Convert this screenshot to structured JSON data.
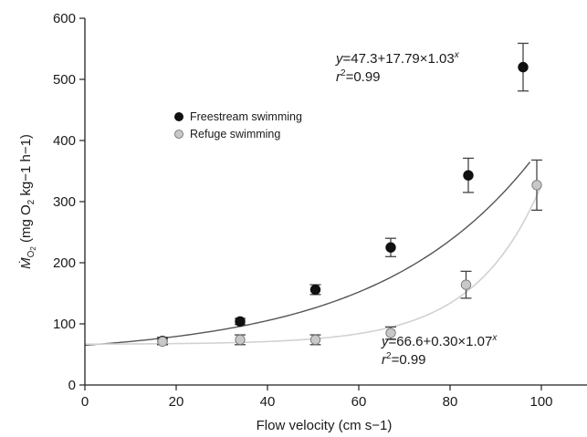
{
  "chart_data": {
    "type": "scatter",
    "xlabel": "Flow velocity (cm s−1)",
    "ylabel": {
      "dot_m": "Ṁ",
      "m_sub": "O",
      "m_sub2": "2",
      "mid": " (mg O",
      "o_sub": "2",
      "unit": " kg−1 h−1)"
    },
    "xlim": [
      0,
      110
    ],
    "ylim": [
      0,
      600
    ],
    "xticks": [
      "0",
      "20",
      "40",
      "60",
      "80",
      "100"
    ],
    "yticks": [
      "0",
      "100",
      "200",
      "300",
      "400",
      "500",
      "600"
    ],
    "grid": false,
    "legend_position": "upper-left",
    "series": [
      {
        "name": "Freestream swimming",
        "marker_color": "#111111",
        "curve_color": "#555555",
        "points": [
          {
            "x": 17,
            "y": 72,
            "err": 6
          },
          {
            "x": 34,
            "y": 104,
            "err": 5
          },
          {
            "x": 50.5,
            "y": 156,
            "err": 8
          },
          {
            "x": 67,
            "y": 225,
            "err": 15
          },
          {
            "x": 84,
            "y": 343,
            "err": 28
          },
          {
            "x": 96,
            "y": 520,
            "err": 39
          }
        ],
        "fit": {
          "a": 47.3,
          "b": 17.79,
          "c": 1.03
        }
      },
      {
        "name": "Refuge swimming",
        "marker_color": "#c8c8c8",
        "curve_color": "#d2d2d2",
        "points": [
          {
            "x": 17,
            "y": 71,
            "err": 5
          },
          {
            "x": 34,
            "y": 74,
            "err": 8
          },
          {
            "x": 50.5,
            "y": 74,
            "err": 8
          },
          {
            "x": 67,
            "y": 85,
            "err": 10
          },
          {
            "x": 83.5,
            "y": 164,
            "err": 22
          },
          {
            "x": 99,
            "y": 327,
            "err": 41
          }
        ],
        "fit": {
          "a": 66.6,
          "b": 0.3,
          "c": 1.07
        }
      }
    ],
    "annotations": [
      {
        "key": "fs_eq",
        "y_label": "y",
        "eq": "=47.3+17.79×1.03",
        "exp": "x",
        "r_label": "r",
        "r_exp": "2",
        "r_val": "=0.99"
      },
      {
        "key": "rf_eq",
        "y_label": "y",
        "eq": "=66.6+0.30×1.07",
        "exp": "x",
        "r_label": "r",
        "r_exp": "2",
        "r_val": "=0.99"
      }
    ]
  }
}
